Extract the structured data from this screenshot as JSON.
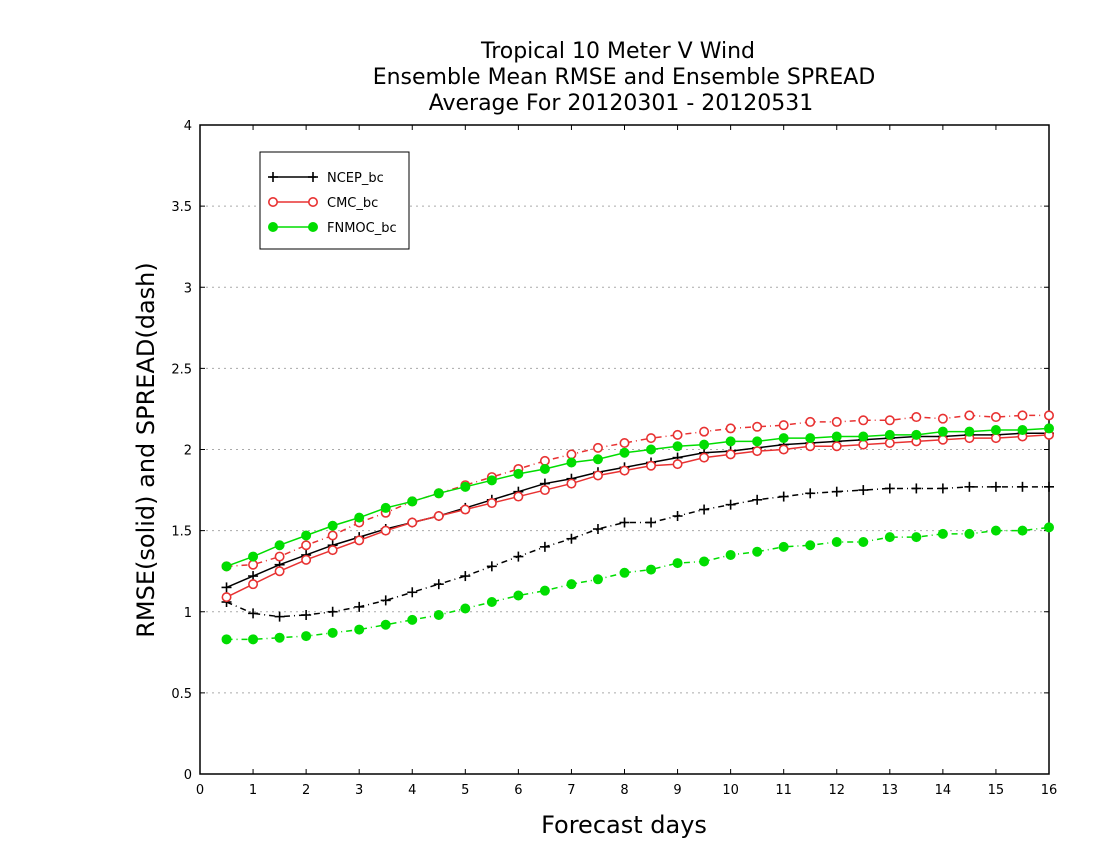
{
  "chart_data": {
    "type": "line",
    "title_lines": [
      "Tropical 10 Meter V Wind",
      "Ensemble Mean RMSE and Ensemble SPREAD",
      "Average For 20120301 - 20120531"
    ],
    "xlabel": "Forecast days",
    "ylabel": "RMSE(solid) and SPREAD(dash)",
    "xlim": [
      0,
      16
    ],
    "ylim": [
      0,
      4
    ],
    "x_ticks": [
      "0",
      "1",
      "2",
      "3",
      "4",
      "5",
      "6",
      "7",
      "8",
      "9",
      "10",
      "11",
      "12",
      "13",
      "14",
      "15",
      "16"
    ],
    "y_ticks": [
      "0",
      "0.5",
      "1",
      "1.5",
      "2",
      "2.5",
      "3",
      "3.5",
      "4"
    ],
    "grid": "horizontal dotted",
    "legend_position": "top-left",
    "x": [
      0.5,
      1,
      1.5,
      2,
      2.5,
      3,
      3.5,
      4,
      4.5,
      5,
      5.5,
      6,
      6.5,
      7,
      7.5,
      8,
      8.5,
      9,
      9.5,
      10,
      10.5,
      11,
      11.5,
      12,
      12.5,
      13,
      13.5,
      14,
      14.5,
      15,
      15.5,
      16
    ],
    "series": [
      {
        "name": "NCEP_bc",
        "color": "#000000",
        "marker": "plus",
        "rmse": [
          1.15,
          1.22,
          1.29,
          1.35,
          1.41,
          1.46,
          1.51,
          1.55,
          1.59,
          1.64,
          1.69,
          1.74,
          1.79,
          1.82,
          1.86,
          1.89,
          1.92,
          1.95,
          1.98,
          1.99,
          2.01,
          2.03,
          2.04,
          2.05,
          2.06,
          2.07,
          2.08,
          2.08,
          2.09,
          2.09,
          2.1,
          2.1
        ],
        "spread": [
          1.06,
          0.99,
          0.97,
          0.98,
          1.0,
          1.03,
          1.07,
          1.12,
          1.17,
          1.22,
          1.28,
          1.34,
          1.4,
          1.45,
          1.51,
          1.55,
          1.55,
          1.59,
          1.63,
          1.66,
          1.69,
          1.71,
          1.73,
          1.74,
          1.75,
          1.76,
          1.76,
          1.76,
          1.77,
          1.77,
          1.77,
          1.77
        ]
      },
      {
        "name": "CMC_bc",
        "color": "#e83232",
        "marker": "open-circle",
        "rmse": [
          1.09,
          1.17,
          1.25,
          1.32,
          1.38,
          1.44,
          1.5,
          1.55,
          1.59,
          1.63,
          1.67,
          1.71,
          1.75,
          1.79,
          1.84,
          1.87,
          1.9,
          1.91,
          1.95,
          1.97,
          1.99,
          2.0,
          2.02,
          2.02,
          2.03,
          2.04,
          2.05,
          2.06,
          2.07,
          2.07,
          2.08,
          2.09
        ],
        "spread": [
          1.28,
          1.29,
          1.34,
          1.41,
          1.47,
          1.55,
          1.61,
          1.68,
          1.73,
          1.78,
          1.83,
          1.88,
          1.93,
          1.97,
          2.01,
          2.04,
          2.07,
          2.09,
          2.11,
          2.13,
          2.14,
          2.15,
          2.17,
          2.17,
          2.18,
          2.18,
          2.2,
          2.19,
          2.21,
          2.2,
          2.21,
          2.21
        ]
      },
      {
        "name": "FNMOC_bc",
        "color": "#00dd00",
        "marker": "filled-circle",
        "rmse": [
          1.28,
          1.34,
          1.41,
          1.47,
          1.53,
          1.58,
          1.64,
          1.68,
          1.73,
          1.77,
          1.81,
          1.85,
          1.88,
          1.92,
          1.94,
          1.98,
          2.0,
          2.02,
          2.03,
          2.05,
          2.05,
          2.07,
          2.07,
          2.08,
          2.08,
          2.09,
          2.09,
          2.11,
          2.11,
          2.12,
          2.12,
          2.13
        ],
        "spread": [
          0.83,
          0.83,
          0.84,
          0.85,
          0.87,
          0.89,
          0.92,
          0.95,
          0.98,
          1.02,
          1.06,
          1.1,
          1.13,
          1.17,
          1.2,
          1.24,
          1.26,
          1.3,
          1.31,
          1.35,
          1.37,
          1.4,
          1.41,
          1.43,
          1.43,
          1.46,
          1.46,
          1.48,
          1.48,
          1.5,
          1.5,
          1.52
        ]
      }
    ]
  }
}
